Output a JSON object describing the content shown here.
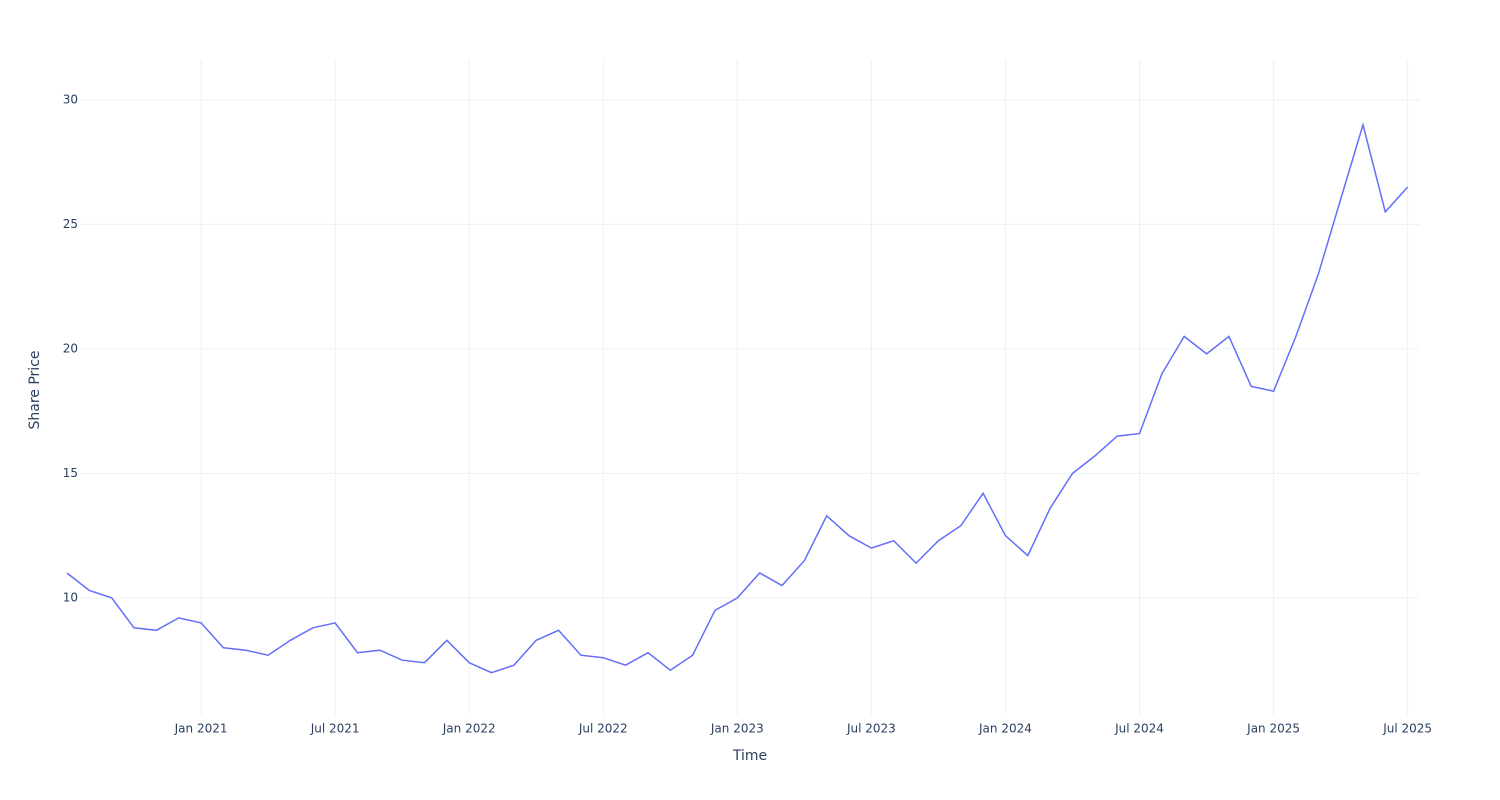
{
  "chart_data": {
    "type": "line",
    "x_label": "Time",
    "y_label": "Share Price",
    "x": [
      "2020-07",
      "2020-08",
      "2020-09",
      "2020-10",
      "2020-11",
      "2020-12",
      "2021-01",
      "2021-02",
      "2021-03",
      "2021-04",
      "2021-05",
      "2021-06",
      "2021-07",
      "2021-08",
      "2021-09",
      "2021-10",
      "2021-11",
      "2021-12",
      "2022-01",
      "2022-02",
      "2022-03",
      "2022-04",
      "2022-05",
      "2022-06",
      "2022-07",
      "2022-08",
      "2022-09",
      "2022-10",
      "2022-11",
      "2022-12",
      "2023-01",
      "2023-02",
      "2023-03",
      "2023-04",
      "2023-05",
      "2023-06",
      "2023-07",
      "2023-08",
      "2023-09",
      "2023-10",
      "2023-11",
      "2023-12",
      "2024-01",
      "2024-02",
      "2024-03",
      "2024-04",
      "2024-05",
      "2024-06",
      "2024-07",
      "2024-08",
      "2024-09",
      "2024-10",
      "2024-11",
      "2024-12",
      "2025-01",
      "2025-02",
      "2025-03",
      "2025-04",
      "2025-05",
      "2025-06",
      "2025-07"
    ],
    "series": [
      {
        "name": "Share Price",
        "color": "#636efa",
        "values": [
          11.0,
          10.3,
          10.0,
          8.8,
          8.7,
          9.2,
          9.0,
          8.0,
          7.9,
          7.7,
          8.3,
          8.8,
          9.0,
          7.8,
          7.9,
          7.5,
          7.4,
          8.3,
          7.4,
          7.0,
          7.3,
          8.3,
          8.7,
          7.7,
          7.6,
          7.3,
          7.8,
          7.1,
          7.7,
          9.5,
          10.0,
          11.0,
          10.5,
          11.5,
          13.3,
          12.5,
          12.0,
          12.3,
          11.4,
          12.3,
          12.9,
          14.2,
          12.5,
          11.7,
          13.6,
          15.0,
          15.7,
          16.5,
          16.6,
          19.0,
          20.5,
          19.8,
          20.5,
          18.5,
          18.3,
          20.5,
          23.0,
          26.0,
          29.0,
          25.5,
          26.5
        ]
      }
    ],
    "xlim": [
      "2020-07",
      "2025-08"
    ],
    "xticks": [
      {
        "value": "2021-01",
        "label": "Jan 2021"
      },
      {
        "value": "2021-07",
        "label": "Jul 2021"
      },
      {
        "value": "2022-01",
        "label": "Jan 2022"
      },
      {
        "value": "2022-07",
        "label": "Jul 2022"
      },
      {
        "value": "2023-01",
        "label": "Jan 2023"
      },
      {
        "value": "2023-07",
        "label": "Jul 2023"
      },
      {
        "value": "2024-01",
        "label": "Jan 2024"
      },
      {
        "value": "2024-07",
        "label": "Jul 2024"
      },
      {
        "value": "2025-01",
        "label": "Jan 2025"
      },
      {
        "value": "2025-07",
        "label": "Jul 2025"
      }
    ],
    "ylim": [
      5.3,
      31.6
    ],
    "yticks": [
      10,
      15,
      20,
      25,
      30
    ],
    "grid": true
  }
}
